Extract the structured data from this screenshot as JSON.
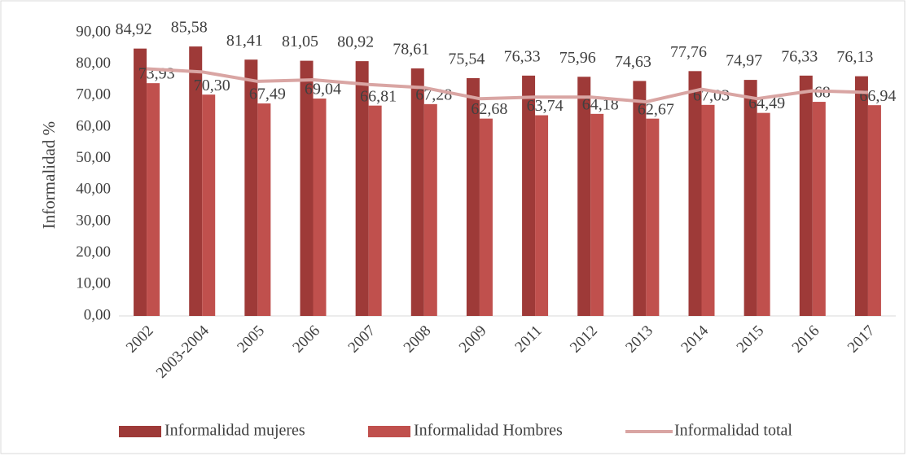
{
  "chart_data": {
    "type": "bar",
    "y_label": "Informalidad %",
    "categories": [
      "2002",
      "2003-2004",
      "2005",
      "2006",
      "2007",
      "2008",
      "2009",
      "2011",
      "2012",
      "2013",
      "2014",
      "2015",
      "2016",
      "2017"
    ],
    "series": [
      {
        "name": "Informalidad mujeres",
        "color": "#9e3a38",
        "type": "bar",
        "values": [
          84.92,
          85.58,
          81.41,
          81.05,
          80.92,
          78.61,
          75.54,
          76.33,
          75.96,
          74.63,
          77.76,
          74.97,
          76.33,
          76.13
        ],
        "value_labels": [
          "84,92",
          "85,58",
          "81,41",
          "81,05",
          "80,92",
          "78,61",
          "75,54",
          "76,33",
          "75,96",
          "74,63",
          "77,76",
          "74,97",
          "76,33",
          "76,13"
        ]
      },
      {
        "name": "Informalidad Hombres",
        "color": "#c0504d",
        "type": "bar",
        "values": [
          73.93,
          70.3,
          67.49,
          69.04,
          66.81,
          67.28,
          62.68,
          63.74,
          64.18,
          62.67,
          67.03,
          64.49,
          68,
          66.94
        ],
        "value_labels": [
          "73,93",
          "70,30",
          "67,49",
          "69,04",
          "66,81",
          "67,28",
          "62,68",
          "63,74",
          "64,18",
          "62,67",
          "67,03",
          "64,49",
          "68",
          "66,94"
        ]
      },
      {
        "name": "Informalidad total",
        "color": "#d9a5a3",
        "type": "line",
        "values": [
          78.5,
          77.5,
          74.5,
          75,
          73.5,
          72.5,
          69,
          69.5,
          69.5,
          68,
          72,
          69,
          71.5,
          71
        ]
      }
    ],
    "ylim": [
      0,
      90
    ],
    "yticks": [
      {
        "value": 0,
        "label": "0,00"
      },
      {
        "value": 10,
        "label": "10,00"
      },
      {
        "value": 20,
        "label": "20,00"
      },
      {
        "value": 30,
        "label": "30,00"
      },
      {
        "value": 40,
        "label": "40,00"
      },
      {
        "value": 50,
        "label": "50,00"
      },
      {
        "value": 60,
        "label": "60,00"
      },
      {
        "value": 70,
        "label": "70,00"
      },
      {
        "value": 80,
        "label": "80,00"
      },
      {
        "value": 90,
        "label": "90,00"
      }
    ],
    "legend": "bottom"
  }
}
